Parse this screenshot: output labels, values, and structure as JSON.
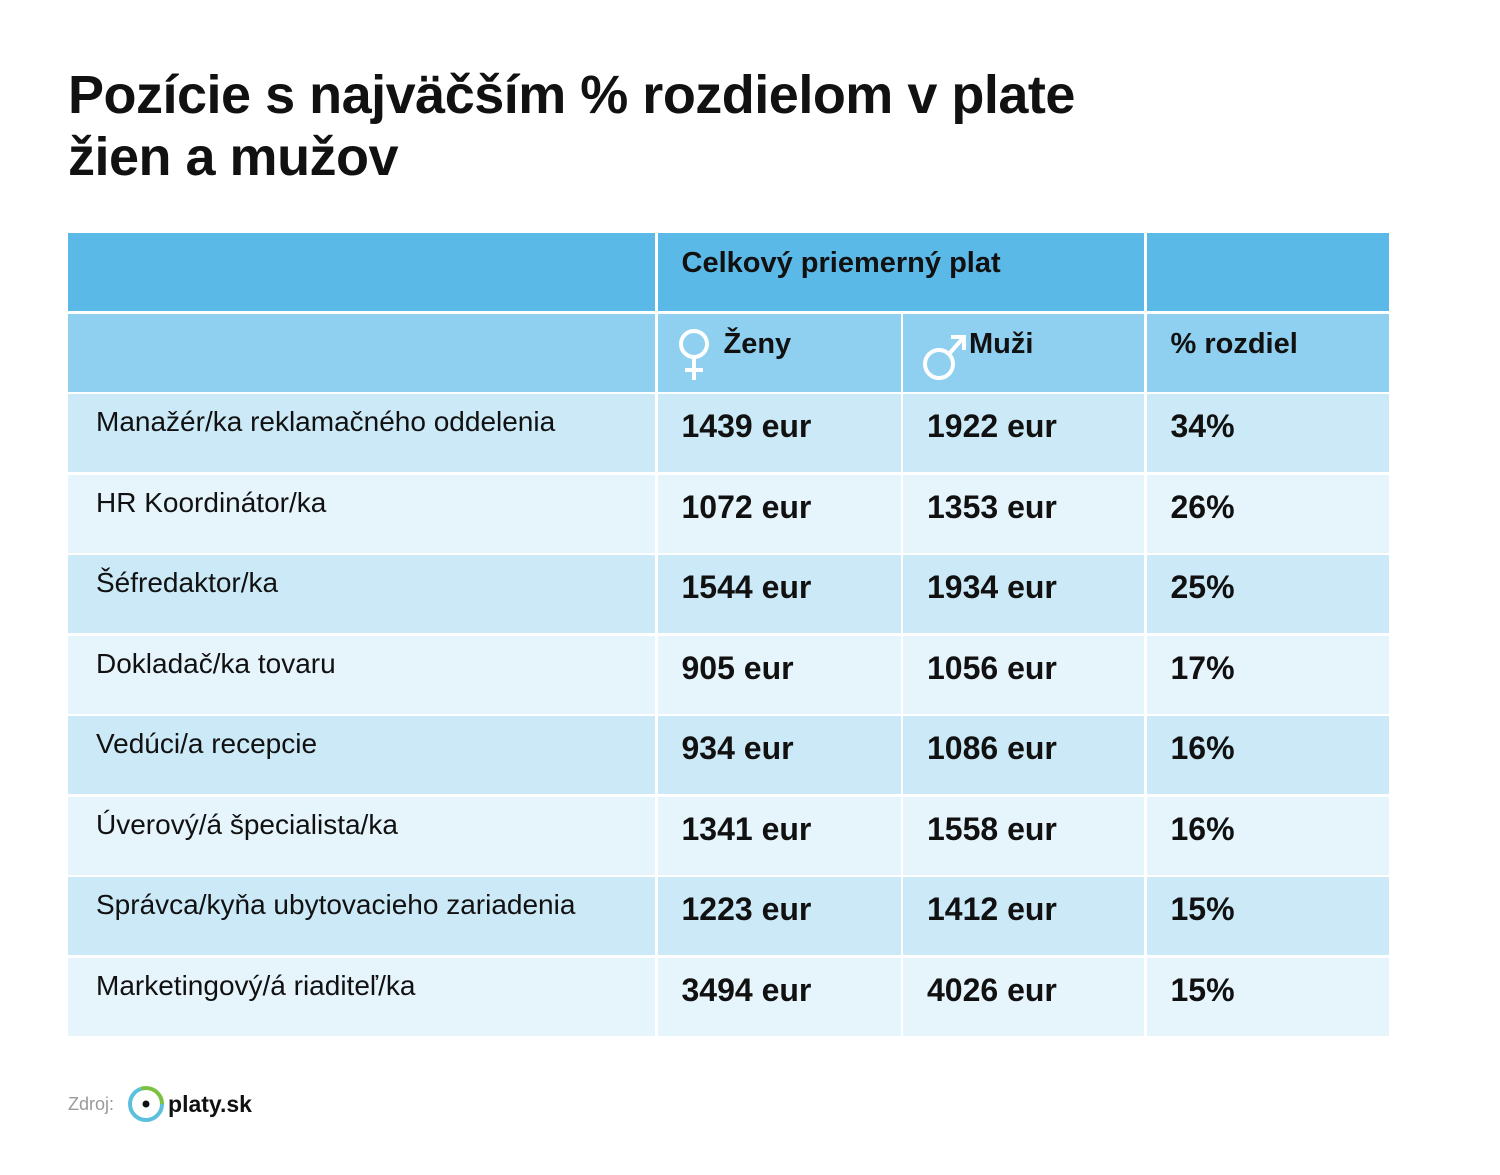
{
  "header": {
    "title": "Pozície s najväčším % rozdielom v plate žien a mužov"
  },
  "table": {
    "group_header": "Celkový priemerný plat",
    "columns": [
      "Ženy",
      "Muži",
      "% rozdiel"
    ],
    "rows": [
      [
        "Manažér/ka reklamačného oddelenia",
        "1439 eur",
        "1922 eur",
        "34%"
      ],
      [
        "HR Koordinátor/ka",
        "1072 eur",
        "1353 eur",
        "26%"
      ],
      [
        "Šéfredaktor/ka",
        "1544 eur",
        "1934 eur",
        "25%"
      ],
      [
        "Dokladač/ka tovaru",
        "905 eur",
        "1056 eur",
        "17%"
      ],
      [
        "Vedúci/a recepcie",
        "934 eur",
        "1086 eur",
        "16%"
      ],
      [
        "Úverový/á špecialista/ka",
        "1341 eur",
        "1558 eur",
        "16%"
      ],
      [
        "Správca/kyňa ubytovacieho zariadenia",
        "1223 eur",
        "1412 eur",
        "15%"
      ],
      [
        "Marketingový/á riaditeľ/ka",
        "3494 eur",
        "4026 eur",
        "15%"
      ]
    ]
  },
  "footer": {
    "source_label": "Zdroj:",
    "logo": "platy.sk"
  }
}
